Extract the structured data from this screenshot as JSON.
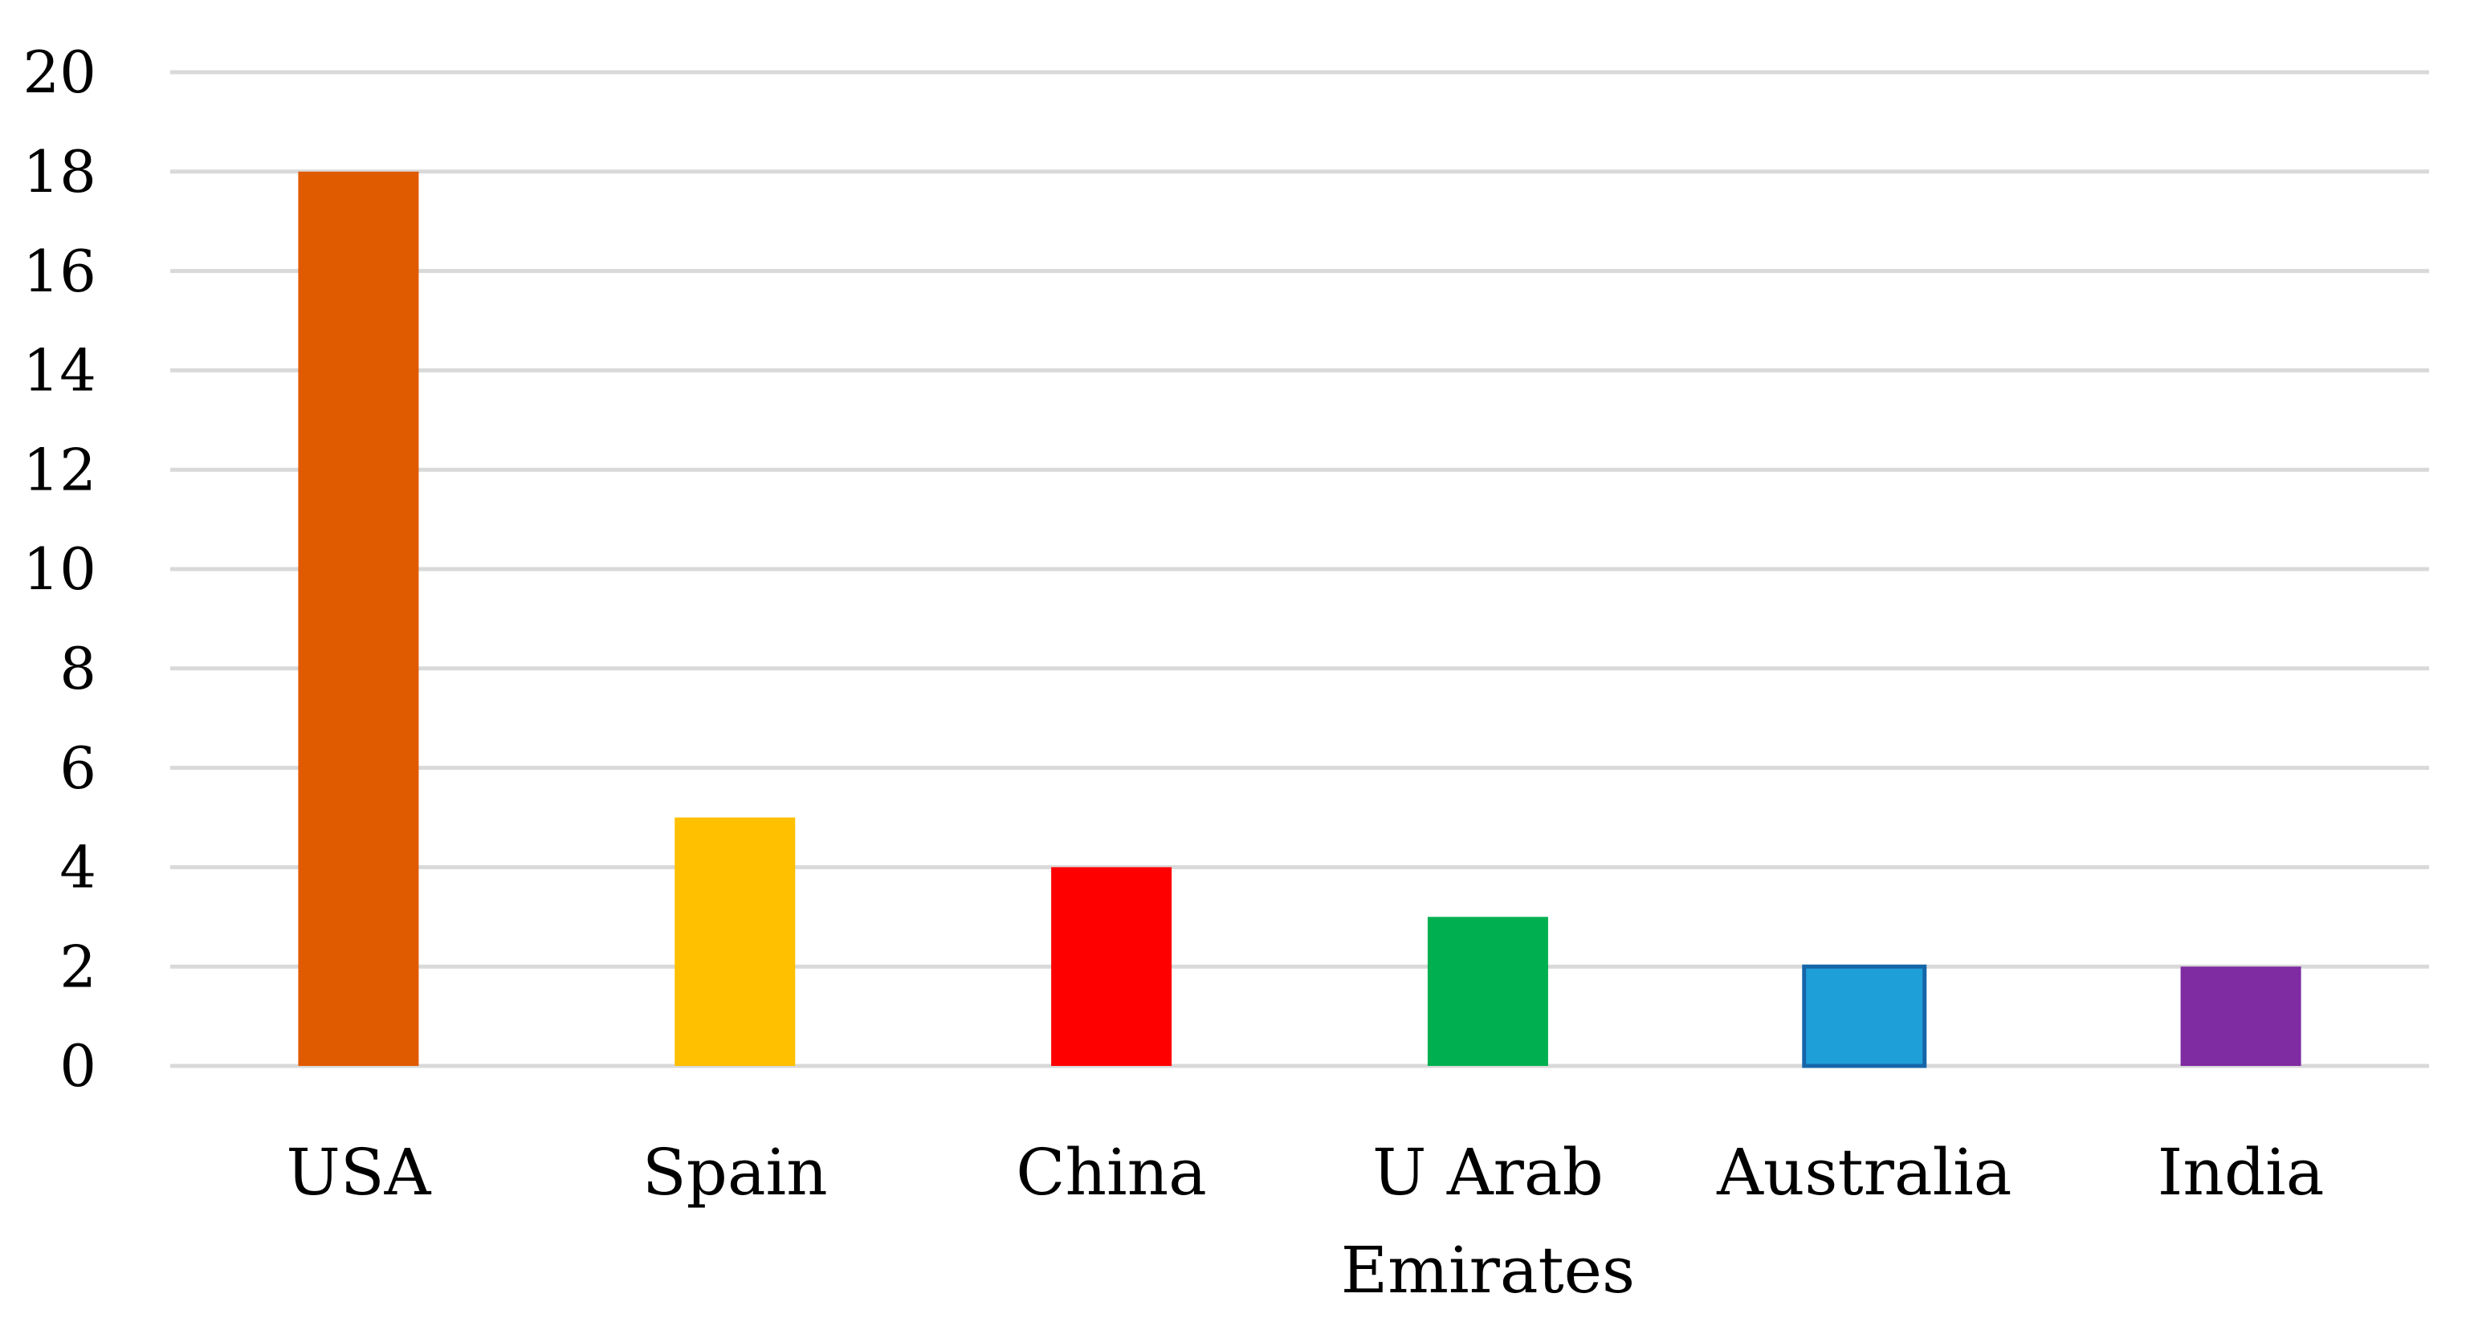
{
  "chart_data": {
    "type": "bar",
    "title": "",
    "xlabel": "",
    "ylabel": "",
    "categories": [
      [
        "USA"
      ],
      [
        "Spain"
      ],
      [
        "China"
      ],
      [
        "U Arab",
        "Emirates"
      ],
      [
        "Australia"
      ],
      [
        "India"
      ]
    ],
    "values": [
      18,
      5,
      4,
      3,
      2,
      2
    ],
    "bar_colors": [
      "#E05A00",
      "#FFC000",
      "#FF0000",
      "#00B050",
      "#1F9FD8",
      "#7F2BA1"
    ],
    "bar_outline_colors": [
      null,
      null,
      null,
      null,
      "#1565A8",
      null
    ],
    "ylim": [
      0,
      20
    ],
    "yticks": [
      0,
      2,
      4,
      6,
      8,
      10,
      12,
      14,
      16,
      18,
      20
    ],
    "grid": true,
    "gridline_color": "#D9D9D9",
    "legend": "none"
  }
}
